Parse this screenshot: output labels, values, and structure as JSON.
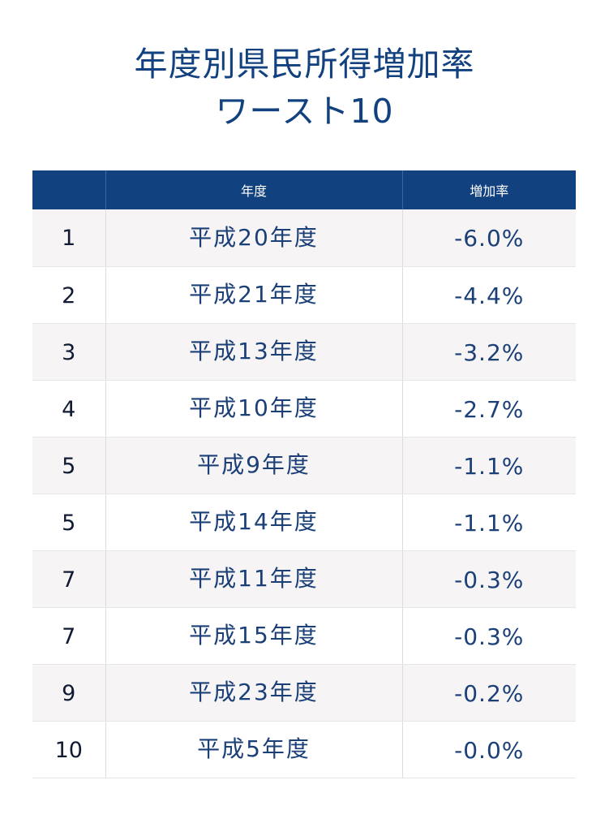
{
  "title": {
    "line1": "年度別県民所得増加率",
    "line2": "ワースト10"
  },
  "chart_data": {
    "type": "table",
    "columns": [
      "",
      "年度",
      "増加率"
    ],
    "rows": [
      {
        "rank": "1",
        "year": "平成20年度",
        "rate": "-6.0%"
      },
      {
        "rank": "2",
        "year": "平成21年度",
        "rate": "-4.4%"
      },
      {
        "rank": "3",
        "year": "平成13年度",
        "rate": "-3.2%"
      },
      {
        "rank": "4",
        "year": "平成10年度",
        "rate": "-2.7%"
      },
      {
        "rank": "5",
        "year": "平成9年度",
        "rate": "-1.1%"
      },
      {
        "rank": "5",
        "year": "平成14年度",
        "rate": "-1.1%"
      },
      {
        "rank": "7",
        "year": "平成11年度",
        "rate": "-0.3%"
      },
      {
        "rank": "7",
        "year": "平成15年度",
        "rate": "-0.3%"
      },
      {
        "rank": "9",
        "year": "平成23年度",
        "rate": "-0.2%"
      },
      {
        "rank": "10",
        "year": "平成5年度",
        "rate": "-0.0%"
      }
    ]
  },
  "colors": {
    "header_bg": "#12417f",
    "title_text": "#12417f",
    "value_text": "#1b3f77",
    "row_alt_bg": "#f6f4f5"
  }
}
